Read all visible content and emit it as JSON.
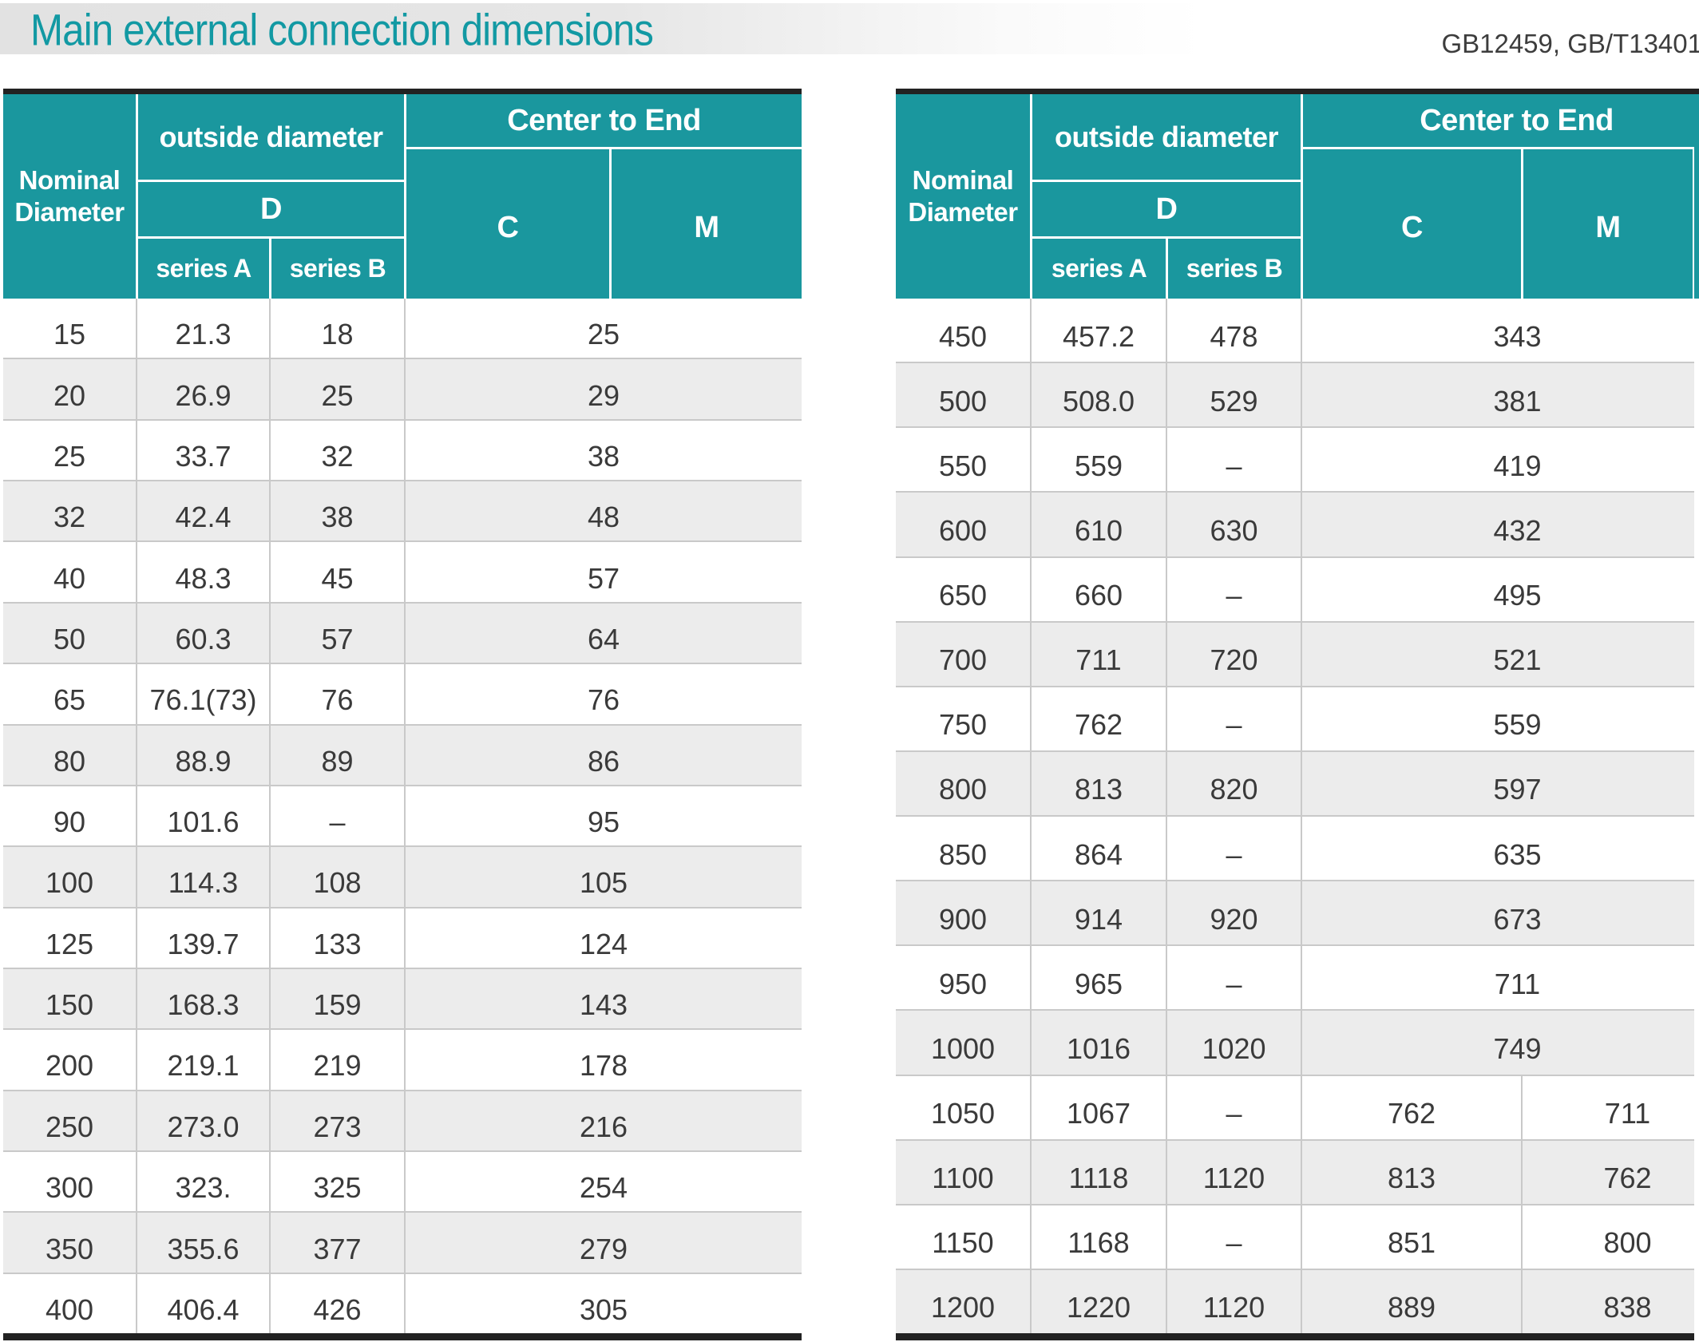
{
  "title": "Main external connection dimensions",
  "standard": "GB12459, GB/T13401",
  "table_header": {
    "nominal_diameter": "Nominal Diameter",
    "outside_diameter": "outside diameter",
    "d": "D",
    "series_a": "series A",
    "series_b": "series B",
    "center_to_end": "Center to End",
    "c": "C",
    "m": "M"
  },
  "left_table": {
    "rows": [
      {
        "nominal": "15",
        "series_a": "21.3",
        "series_b": "18",
        "center_to_end": "25"
      },
      {
        "nominal": "20",
        "series_a": "26.9",
        "series_b": "25",
        "center_to_end": "29"
      },
      {
        "nominal": "25",
        "series_a": "33.7",
        "series_b": "32",
        "center_to_end": "38"
      },
      {
        "nominal": "32",
        "series_a": "42.4",
        "series_b": "38",
        "center_to_end": "48"
      },
      {
        "nominal": "40",
        "series_a": "48.3",
        "series_b": "45",
        "center_to_end": "57"
      },
      {
        "nominal": "50",
        "series_a": "60.3",
        "series_b": "57",
        "center_to_end": "64"
      },
      {
        "nominal": "65",
        "series_a": "76.1(73)",
        "series_b": "76",
        "center_to_end": "76"
      },
      {
        "nominal": "80",
        "series_a": "88.9",
        "series_b": "89",
        "center_to_end": "86"
      },
      {
        "nominal": "90",
        "series_a": "101.6",
        "series_b": "–",
        "center_to_end": "95"
      },
      {
        "nominal": "100",
        "series_a": "114.3",
        "series_b": "108",
        "center_to_end": "105"
      },
      {
        "nominal": "125",
        "series_a": "139.7",
        "series_b": "133",
        "center_to_end": "124"
      },
      {
        "nominal": "150",
        "series_a": "168.3",
        "series_b": "159",
        "center_to_end": "143"
      },
      {
        "nominal": "200",
        "series_a": "219.1",
        "series_b": "219",
        "center_to_end": "178"
      },
      {
        "nominal": "250",
        "series_a": "273.0",
        "series_b": "273",
        "center_to_end": "216"
      },
      {
        "nominal": "300",
        "series_a": "323.",
        "series_b": "325",
        "center_to_end": "254"
      },
      {
        "nominal": "350",
        "series_a": "355.6",
        "series_b": "377",
        "center_to_end": "279"
      },
      {
        "nominal": "400",
        "series_a": "406.4",
        "series_b": "426",
        "center_to_end": "305"
      }
    ]
  },
  "right_table": {
    "rows": [
      {
        "nominal": "450",
        "series_a": "457.2",
        "series_b": "478",
        "center_to_end": "343"
      },
      {
        "nominal": "500",
        "series_a": "508.0",
        "series_b": "529",
        "center_to_end": "381"
      },
      {
        "nominal": "550",
        "series_a": "559",
        "series_b": "–",
        "center_to_end": "419"
      },
      {
        "nominal": "600",
        "series_a": "610",
        "series_b": "630",
        "center_to_end": "432"
      },
      {
        "nominal": "650",
        "series_a": "660",
        "series_b": "–",
        "center_to_end": "495"
      },
      {
        "nominal": "700",
        "series_a": "711",
        "series_b": "720",
        "center_to_end": "521"
      },
      {
        "nominal": "750",
        "series_a": "762",
        "series_b": "–",
        "center_to_end": "559"
      },
      {
        "nominal": "800",
        "series_a": "813",
        "series_b": "820",
        "center_to_end": "597"
      },
      {
        "nominal": "850",
        "series_a": "864",
        "series_b": "–",
        "center_to_end": "635"
      },
      {
        "nominal": "900",
        "series_a": "914",
        "series_b": "920",
        "center_to_end": "673"
      },
      {
        "nominal": "950",
        "series_a": "965",
        "series_b": "–",
        "center_to_end": "711"
      },
      {
        "nominal": "1000",
        "series_a": "1016",
        "series_b": "1020",
        "center_to_end": "749"
      },
      {
        "nominal": "1050",
        "series_a": "1067",
        "series_b": "–",
        "c": "762",
        "m": "711"
      },
      {
        "nominal": "1100",
        "series_a": "1118",
        "series_b": "1120",
        "c": "813",
        "m": "762"
      },
      {
        "nominal": "1150",
        "series_a": "1168",
        "series_b": "–",
        "c": "851",
        "m": "800"
      },
      {
        "nominal": "1200",
        "series_a": "1220",
        "series_b": "1120",
        "c": "889",
        "m": "838"
      }
    ]
  }
}
